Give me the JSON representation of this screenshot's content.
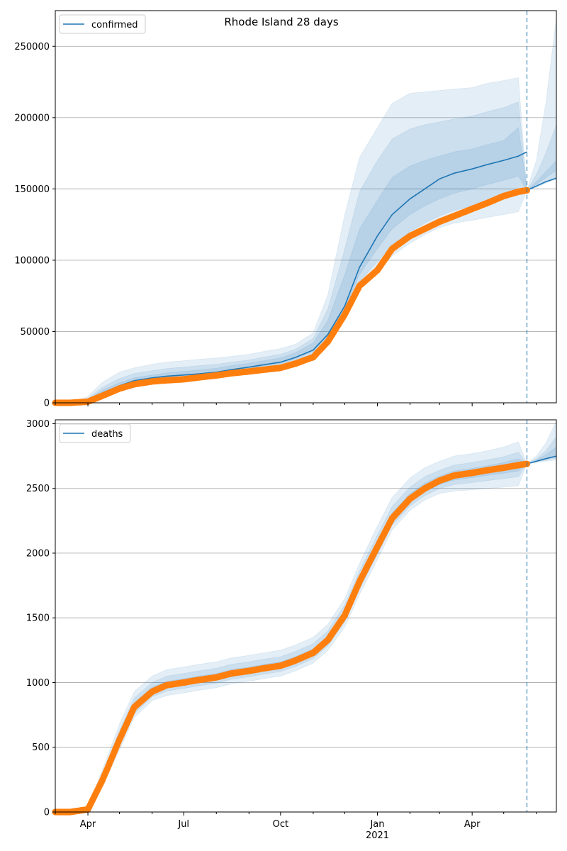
{
  "colors": {
    "model": "#1f77b4",
    "band": "#1f77b4",
    "observed": "#ff7f0e",
    "forecast_line": "#1f77b4",
    "grid": "#b0b0b0"
  },
  "chart_data": [
    {
      "type": "line",
      "title": "Rhode Island 28 days",
      "legend": "confirmed",
      "legend_position": "top-left",
      "grid": "horizontal",
      "ylim": [
        0,
        275000
      ],
      "yticks": [
        0,
        50000,
        100000,
        150000,
        200000,
        250000
      ],
      "ytick_labels": [
        "0",
        "50000",
        "100000",
        "150000",
        "200000",
        "250000"
      ],
      "xlim": [
        "2020-03-01",
        "2021-06-20"
      ],
      "forecast_start": "2021-05-23",
      "x": [
        "2020-03-01",
        "2020-03-15",
        "2020-04-01",
        "2020-04-15",
        "2020-05-01",
        "2020-05-15",
        "2020-06-01",
        "2020-06-15",
        "2020-07-01",
        "2020-07-15",
        "2020-08-01",
        "2020-08-15",
        "2020-09-01",
        "2020-09-15",
        "2020-10-01",
        "2020-10-15",
        "2020-11-01",
        "2020-11-15",
        "2020-12-01",
        "2020-12-15",
        "2021-01-01",
        "2021-01-15",
        "2021-02-01",
        "2021-02-15",
        "2021-03-01",
        "2021-03-15",
        "2021-04-01",
        "2021-04-15",
        "2021-05-01",
        "2021-05-15",
        "2021-05-23",
        "2021-06-01",
        "2021-06-10",
        "2021-06-20"
      ],
      "series": [
        {
          "name": "confirmed",
          "role": "model_median",
          "values": [
            0,
            0,
            1500,
            7000,
            12000,
            15500,
            17500,
            18700,
            19500,
            20300,
            21500,
            23200,
            25000,
            26700,
            28500,
            31800,
            37000,
            48000,
            68000,
            95000,
            117000,
            132000,
            143000,
            150000,
            157000,
            161000,
            164000,
            167000,
            170000,
            173000,
            176000,
            null,
            null,
            null
          ]
        },
        {
          "name": "confirmed-observed",
          "role": "observed",
          "values": [
            0,
            0,
            800,
            5000,
            10000,
            13000,
            15000,
            15800,
            16500,
            17800,
            19200,
            20700,
            22000,
            23200,
            24500,
            27500,
            32000,
            43000,
            62000,
            82000,
            93000,
            108000,
            117000,
            122000,
            127000,
            131000,
            136000,
            140000,
            145000,
            148000,
            149000,
            null,
            null,
            null
          ]
        },
        {
          "name": "confirmed-forecast",
          "role": "forecast",
          "values": [
            null,
            null,
            null,
            null,
            null,
            null,
            null,
            null,
            null,
            null,
            null,
            null,
            null,
            null,
            null,
            null,
            null,
            null,
            null,
            null,
            null,
            null,
            null,
            null,
            null,
            null,
            null,
            null,
            null,
            null,
            149000,
            152000,
            155000,
            157500
          ]
        }
      ],
      "bands": [
        {
          "name": "outer",
          "low": [
            0,
            0,
            800,
            5000,
            10000,
            13000,
            15000,
            15800,
            16500,
            17500,
            19000,
            20500,
            22000,
            23500,
            25000,
            28000,
            33000,
            44000,
            60000,
            80000,
            92000,
            103000,
            112000,
            118000,
            123000,
            126000,
            128000,
            130000,
            132000,
            134000,
            149000,
            153000,
            158000,
            163000
          ],
          "high": [
            0,
            0,
            4500,
            14500,
            21500,
            24500,
            27000,
            28500,
            29500,
            30500,
            31500,
            32500,
            34000,
            36000,
            38000,
            41000,
            49000,
            76000,
            132000,
            172000,
            193000,
            210000,
            217000,
            218000,
            219000,
            220000,
            221000,
            224000,
            226000,
            228000,
            149000,
            170000,
            210000,
            270000
          ]
        },
        {
          "name": "middle",
          "low": [
            0,
            0,
            1000,
            6000,
            11000,
            14000,
            16000,
            16800,
            17500,
            18500,
            20000,
            21500,
            23200,
            24800,
            26300,
            29500,
            34500,
            45500,
            62000,
            85000,
            99000,
            111000,
            120000,
            126000,
            131000,
            135000,
            138000,
            141000,
            144000,
            147000,
            149000,
            152000,
            155000,
            158000
          ],
          "high": [
            0,
            0,
            3000,
            11000,
            17000,
            20500,
            22500,
            24000,
            25000,
            26000,
            27000,
            28500,
            30000,
            32000,
            34000,
            37500,
            45000,
            66000,
            108000,
            148000,
            170000,
            185000,
            192000,
            195000,
            197000,
            199000,
            201000,
            204000,
            207000,
            211000,
            149000,
            160000,
            175000,
            195000
          ]
        },
        {
          "name": "inner",
          "low": [
            0,
            0,
            1200,
            6500,
            11500,
            14800,
            16800,
            17800,
            18500,
            19500,
            20800,
            22300,
            24000,
            25800,
            27500,
            30800,
            36000,
            47000,
            66000,
            90000,
            108000,
            122000,
            132000,
            138000,
            143000,
            147000,
            150000,
            153000,
            156000,
            159000,
            149000,
            151000,
            154000,
            157000
          ],
          "high": [
            0,
            0,
            2200,
            9000,
            14000,
            17500,
            19500,
            21000,
            22000,
            23000,
            24200,
            26000,
            27700,
            29500,
            31500,
            35000,
            42000,
            58000,
            90000,
            122000,
            142000,
            158000,
            166000,
            170000,
            173000,
            176000,
            178000,
            181000,
            184000,
            193000,
            149000,
            155000,
            162000,
            170000
          ]
        }
      ]
    },
    {
      "type": "line",
      "title": "",
      "legend": "deaths",
      "legend_position": "top-left",
      "grid": "horizontal",
      "ylim": [
        0,
        3030
      ],
      "yticks": [
        0,
        500,
        1000,
        1500,
        2000,
        2500,
        3000
      ],
      "ytick_labels": [
        "0",
        "500",
        "1000",
        "1500",
        "2000",
        "2500",
        "3000"
      ],
      "xlim": [
        "2020-03-01",
        "2021-06-20"
      ],
      "xticks": [
        "2020-04-01",
        "2020-07-01",
        "2020-10-01",
        "2021-01-01",
        "2021-04-01"
      ],
      "xtick_labels": [
        "Apr",
        "Jul",
        "Oct",
        "Jan",
        "Apr"
      ],
      "xtick_year_label": "2021",
      "forecast_start": "2021-05-23",
      "x": [
        "2020-03-01",
        "2020-03-15",
        "2020-04-01",
        "2020-04-15",
        "2020-05-01",
        "2020-05-15",
        "2020-06-01",
        "2020-06-15",
        "2020-07-01",
        "2020-07-15",
        "2020-08-01",
        "2020-08-15",
        "2020-09-01",
        "2020-09-15",
        "2020-10-01",
        "2020-10-15",
        "2020-11-01",
        "2020-11-15",
        "2020-12-01",
        "2020-12-15",
        "2021-01-01",
        "2021-01-15",
        "2021-02-01",
        "2021-02-15",
        "2021-03-01",
        "2021-03-15",
        "2021-04-01",
        "2021-04-15",
        "2021-05-01",
        "2021-05-15",
        "2021-05-23",
        "2021-06-01",
        "2021-06-10",
        "2021-06-20"
      ],
      "series": [
        {
          "name": "deaths",
          "role": "model_median",
          "values": [
            0,
            0,
            20,
            250,
            560,
            810,
            930,
            980,
            1000,
            1020,
            1040,
            1070,
            1090,
            1110,
            1130,
            1170,
            1230,
            1330,
            1520,
            1780,
            2050,
            2270,
            2420,
            2500,
            2560,
            2600,
            2620,
            2640,
            2660,
            2680,
            2690,
            null,
            null,
            null
          ]
        },
        {
          "name": "deaths-observed",
          "role": "observed",
          "values": [
            0,
            0,
            20,
            250,
            560,
            810,
            930,
            980,
            1000,
            1020,
            1040,
            1070,
            1090,
            1110,
            1130,
            1170,
            1230,
            1330,
            1520,
            1780,
            2050,
            2270,
            2420,
            2500,
            2560,
            2600,
            2620,
            2640,
            2660,
            2680,
            2690,
            null,
            null,
            null
          ]
        },
        {
          "name": "deaths-forecast",
          "role": "forecast",
          "values": [
            null,
            null,
            null,
            null,
            null,
            null,
            null,
            null,
            null,
            null,
            null,
            null,
            null,
            null,
            null,
            null,
            null,
            null,
            null,
            null,
            null,
            null,
            null,
            null,
            null,
            null,
            null,
            null,
            null,
            null,
            2690,
            2710,
            2730,
            2750
          ]
        }
      ],
      "bands": [
        {
          "name": "outer",
          "low": [
            0,
            0,
            10,
            200,
            480,
            730,
            860,
            900,
            920,
            940,
            960,
            990,
            1010,
            1030,
            1050,
            1090,
            1150,
            1250,
            1430,
            1680,
            1950,
            2180,
            2330,
            2410,
            2460,
            2480,
            2490,
            2500,
            2510,
            2520,
            2690,
            2700,
            2710,
            2720
          ],
          "high": [
            0,
            0,
            40,
            330,
            680,
            930,
            1050,
            1100,
            1120,
            1140,
            1160,
            1190,
            1210,
            1230,
            1250,
            1290,
            1350,
            1450,
            1650,
            1920,
            2210,
            2430,
            2580,
            2660,
            2710,
            2750,
            2770,
            2790,
            2820,
            2860,
            2690,
            2750,
            2850,
            3020
          ]
        },
        {
          "name": "middle",
          "low": [
            0,
            0,
            14,
            220,
            510,
            760,
            890,
            935,
            955,
            975,
            995,
            1025,
            1045,
            1065,
            1085,
            1125,
            1185,
            1285,
            1470,
            1720,
            1990,
            2215,
            2365,
            2445,
            2500,
            2530,
            2545,
            2560,
            2575,
            2590,
            2690,
            2705,
            2720,
            2735
          ],
          "high": [
            0,
            0,
            30,
            295,
            630,
            880,
            1000,
            1050,
            1070,
            1090,
            1110,
            1140,
            1160,
            1180,
            1200,
            1240,
            1300,
            1400,
            1600,
            1860,
            2140,
            2360,
            2510,
            2590,
            2640,
            2680,
            2700,
            2720,
            2745,
            2780,
            2690,
            2730,
            2790,
            2900
          ]
        },
        {
          "name": "inner",
          "low": [
            0,
            0,
            17,
            235,
            535,
            785,
            910,
            958,
            978,
            998,
            1018,
            1048,
            1068,
            1088,
            1108,
            1148,
            1208,
            1308,
            1495,
            1750,
            2020,
            2243,
            2393,
            2473,
            2530,
            2565,
            2583,
            2600,
            2618,
            2635,
            2690,
            2708,
            2726,
            2744
          ],
          "high": [
            0,
            0,
            25,
            270,
            595,
            845,
            965,
            1010,
            1030,
            1050,
            1070,
            1100,
            1120,
            1140,
            1160,
            1200,
            1260,
            1360,
            1555,
            1815,
            2090,
            2310,
            2460,
            2540,
            2595,
            2635,
            2655,
            2675,
            2700,
            2730,
            2690,
            2720,
            2760,
            2820
          ]
        }
      ]
    }
  ]
}
